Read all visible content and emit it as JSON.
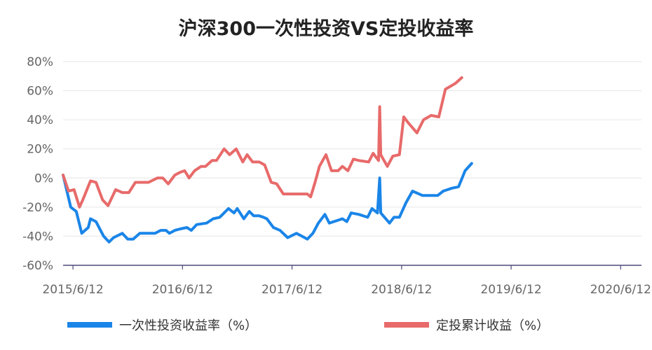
{
  "chart_data": {
    "type": "line",
    "title": "沪深300一次性投资VS定投收益率",
    "xlabel": "",
    "ylabel": "",
    "ylim": [
      -60,
      80
    ],
    "y_ticks": [
      80,
      60,
      40,
      20,
      0,
      -20,
      -40,
      -60
    ],
    "y_tick_labels": [
      "80%",
      "60%",
      "40%",
      "20%",
      "0%",
      "-20%",
      "-40%",
      "-60%"
    ],
    "x_range": [
      2015.35,
      2020.63
    ],
    "x_ticks": [
      {
        "label": "2015/6/12",
        "x": 2015.44
      },
      {
        "label": "2016/6/12",
        "x": 2016.44
      },
      {
        "label": "2017/6/12",
        "x": 2017.44
      },
      {
        "label": "2018/6/12",
        "x": 2018.44
      },
      {
        "label": "2019/6/12",
        "x": 2019.44
      },
      {
        "label": "2020/6/12",
        "x": 2020.44
      }
    ],
    "legend_position": "bottom",
    "series": [
      {
        "name": "一次性投资收益率（%）",
        "color": "#1a85e8",
        "points": [
          [
            2015.35,
            2
          ],
          [
            2015.42,
            -20
          ],
          [
            2015.47,
            -23
          ],
          [
            2015.52,
            -38
          ],
          [
            2015.58,
            -34
          ],
          [
            2015.6,
            -28
          ],
          [
            2015.65,
            -30
          ],
          [
            2015.72,
            -40
          ],
          [
            2015.77,
            -44
          ],
          [
            2015.81,
            -41
          ],
          [
            2015.89,
            -38
          ],
          [
            2015.94,
            -42
          ],
          [
            2015.99,
            -42
          ],
          [
            2016.05,
            -38
          ],
          [
            2016.12,
            -38
          ],
          [
            2016.19,
            -38
          ],
          [
            2016.24,
            -36
          ],
          [
            2016.29,
            -36
          ],
          [
            2016.32,
            -38
          ],
          [
            2016.37,
            -36
          ],
          [
            2016.42,
            -35
          ],
          [
            2016.48,
            -34
          ],
          [
            2016.52,
            -36
          ],
          [
            2016.57,
            -32
          ],
          [
            2016.66,
            -31
          ],
          [
            2016.72,
            -28
          ],
          [
            2016.78,
            -27
          ],
          [
            2016.86,
            -21
          ],
          [
            2016.91,
            -24
          ],
          [
            2016.94,
            -21
          ],
          [
            2017.0,
            -28
          ],
          [
            2017.05,
            -23
          ],
          [
            2017.09,
            -26
          ],
          [
            2017.14,
            -26
          ],
          [
            2017.18,
            -27
          ],
          [
            2017.21,
            -28
          ],
          [
            2017.27,
            -34
          ],
          [
            2017.33,
            -36
          ],
          [
            2017.4,
            -41
          ],
          [
            2017.48,
            -38
          ],
          [
            2017.53,
            -40
          ],
          [
            2017.58,
            -42
          ],
          [
            2017.63,
            -38
          ],
          [
            2017.68,
            -31
          ],
          [
            2017.74,
            -25
          ],
          [
            2017.78,
            -31
          ],
          [
            2017.86,
            -29
          ],
          [
            2017.9,
            -28
          ],
          [
            2017.94,
            -30
          ],
          [
            2017.98,
            -24
          ],
          [
            2018.05,
            -25
          ],
          [
            2018.13,
            -27
          ],
          [
            2018.17,
            -21
          ],
          [
            2018.22,
            -24
          ],
          [
            2018.24,
            0
          ],
          [
            2018.25,
            -24
          ],
          [
            2018.33,
            -31
          ],
          [
            2018.37,
            -27
          ],
          [
            2018.42,
            -27
          ],
          [
            2018.48,
            -17
          ],
          [
            2018.54,
            -9
          ],
          [
            2018.63,
            -12
          ],
          [
            2018.7,
            -12
          ],
          [
            2018.77,
            -12
          ],
          [
            2018.82,
            -9
          ],
          [
            2018.9,
            -7
          ],
          [
            2018.96,
            -6
          ],
          [
            2019.02,
            5
          ],
          [
            2019.08,
            10
          ]
        ]
      },
      {
        "name": "定投累计收益（%）",
        "color": "#e86a6a",
        "points": [
          [
            2015.35,
            2
          ],
          [
            2015.4,
            -9
          ],
          [
            2015.45,
            -8
          ],
          [
            2015.5,
            -20
          ],
          [
            2015.53,
            -15
          ],
          [
            2015.6,
            -2
          ],
          [
            2015.65,
            -3
          ],
          [
            2015.71,
            -15
          ],
          [
            2015.76,
            -19
          ],
          [
            2015.83,
            -8
          ],
          [
            2015.89,
            -10
          ],
          [
            2015.95,
            -10
          ],
          [
            2016.01,
            -3
          ],
          [
            2016.07,
            -3
          ],
          [
            2016.13,
            -3
          ],
          [
            2016.21,
            0
          ],
          [
            2016.26,
            0
          ],
          [
            2016.31,
            -4
          ],
          [
            2016.37,
            2
          ],
          [
            2016.42,
            4
          ],
          [
            2016.46,
            5
          ],
          [
            2016.5,
            0
          ],
          [
            2016.55,
            5
          ],
          [
            2016.61,
            8
          ],
          [
            2016.65,
            8
          ],
          [
            2016.71,
            12
          ],
          [
            2016.75,
            12
          ],
          [
            2016.82,
            20
          ],
          [
            2016.87,
            16
          ],
          [
            2016.93,
            20
          ],
          [
            2016.99,
            11
          ],
          [
            2017.03,
            16
          ],
          [
            2017.08,
            11
          ],
          [
            2017.14,
            11
          ],
          [
            2017.19,
            9
          ],
          [
            2017.25,
            -3
          ],
          [
            2017.3,
            -4
          ],
          [
            2017.36,
            -11
          ],
          [
            2017.44,
            -11
          ],
          [
            2017.52,
            -11
          ],
          [
            2017.58,
            -11
          ],
          [
            2017.61,
            -13
          ],
          [
            2017.65,
            -3
          ],
          [
            2017.69,
            8
          ],
          [
            2017.75,
            16
          ],
          [
            2017.8,
            5
          ],
          [
            2017.86,
            5
          ],
          [
            2017.9,
            8
          ],
          [
            2017.95,
            5
          ],
          [
            2018.0,
            13
          ],
          [
            2018.05,
            12
          ],
          [
            2018.14,
            11
          ],
          [
            2018.18,
            17
          ],
          [
            2018.23,
            12
          ],
          [
            2018.24,
            49
          ],
          [
            2018.25,
            16
          ],
          [
            2018.31,
            8
          ],
          [
            2018.36,
            15
          ],
          [
            2018.42,
            16
          ],
          [
            2018.46,
            42
          ],
          [
            2018.5,
            38
          ],
          [
            2018.58,
            31
          ],
          [
            2018.64,
            40
          ],
          [
            2018.71,
            43
          ],
          [
            2018.78,
            42
          ],
          [
            2018.84,
            61
          ],
          [
            2018.93,
            65
          ],
          [
            2018.99,
            69
          ]
        ]
      }
    ]
  }
}
